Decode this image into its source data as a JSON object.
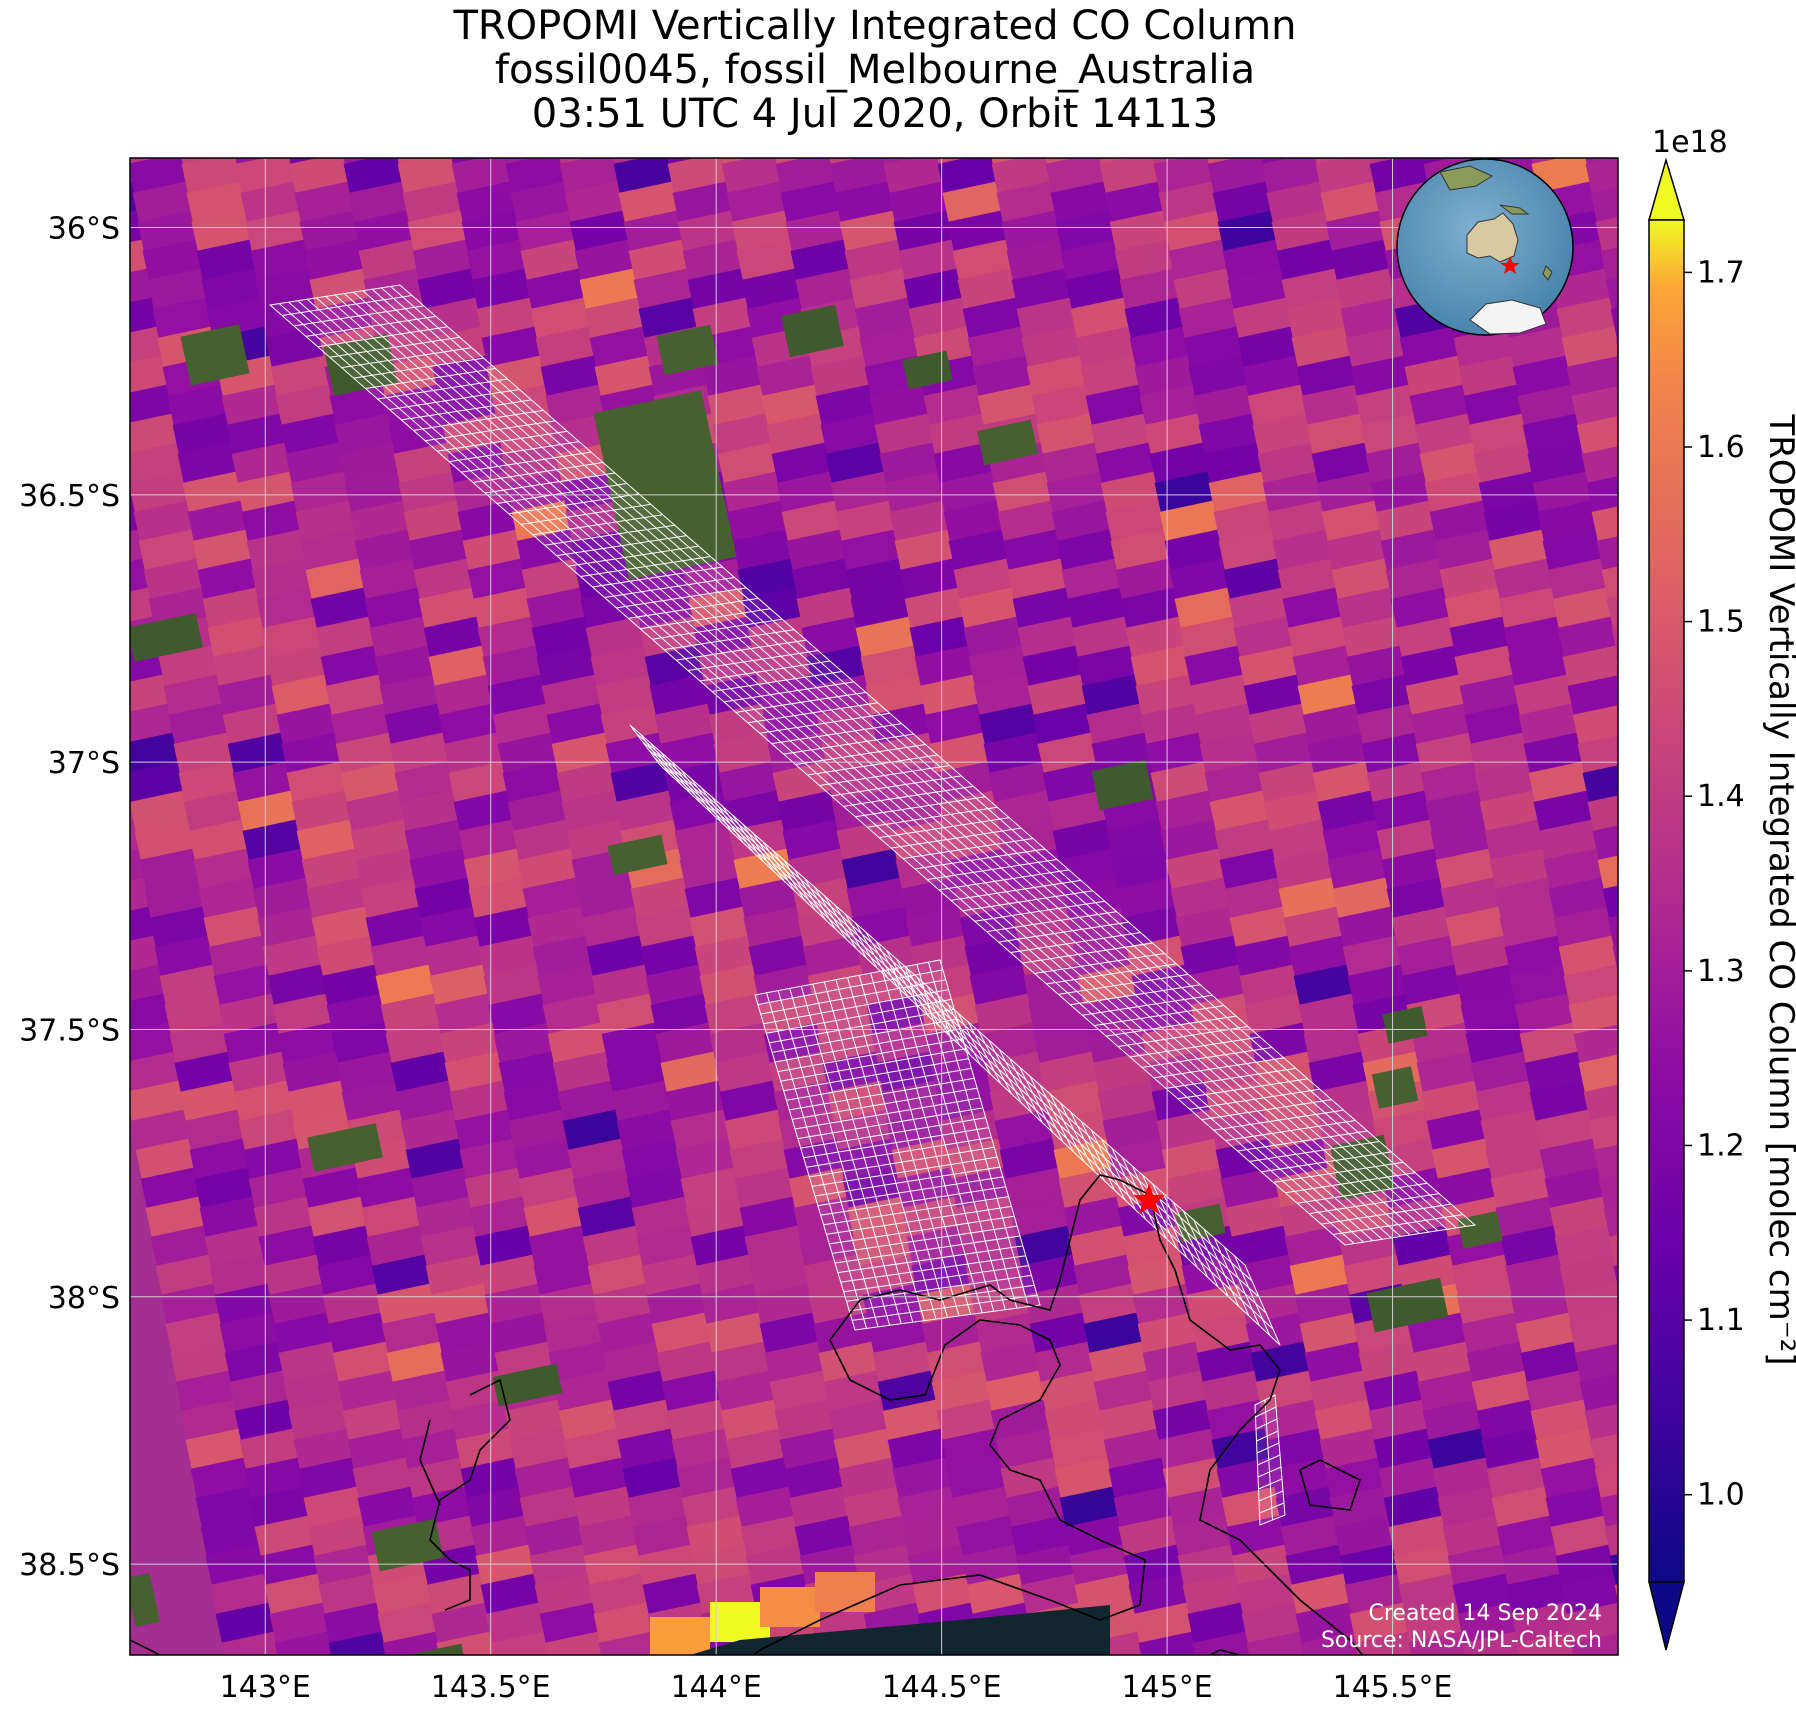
{
  "title": {
    "line1": "TROPOMI Vertically Integrated CO Column",
    "line2": "fossil0045, fossil_Melbourne_Australia",
    "line3": "03:51 UTC 4 Jul 2020, Orbit 14113"
  },
  "map": {
    "lon_range": [
      142.7,
      146.0
    ],
    "lat_range": [
      -38.67,
      -35.87
    ],
    "lon_ticks": [
      {
        "value": 143.0,
        "label": "143°E"
      },
      {
        "value": 143.5,
        "label": "143.5°E"
      },
      {
        "value": 144.0,
        "label": "144°E"
      },
      {
        "value": 144.5,
        "label": "144.5°E"
      },
      {
        "value": 145.0,
        "label": "145°E"
      },
      {
        "value": 145.5,
        "label": "145.5°E"
      }
    ],
    "lat_ticks": [
      {
        "value": -36.0,
        "label": "36°S"
      },
      {
        "value": -36.5,
        "label": "36.5°S"
      },
      {
        "value": -37.0,
        "label": "37°S"
      },
      {
        "value": -37.5,
        "label": "37.5°S"
      },
      {
        "value": -38.0,
        "label": "38°S"
      },
      {
        "value": -38.5,
        "label": "38.5°S"
      }
    ],
    "gridlines": true,
    "target_marker": {
      "lon": 144.96,
      "lat": -37.82,
      "symbol": "red-star"
    },
    "inset": "globe-locator-australia",
    "colors": {
      "grid": "#d0d0d0",
      "target": "#ff0000",
      "coast": "#000000",
      "snapshot": "#ffffff"
    }
  },
  "colorbar": {
    "label": "TROPOMI Vertically Integrated CO Column [molec cm⁻²]",
    "multiplier": "1e18",
    "range": [
      0.95,
      1.73
    ],
    "ticks": [
      {
        "value": 1.0,
        "label": "1.0"
      },
      {
        "value": 1.1,
        "label": "1.1"
      },
      {
        "value": 1.2,
        "label": "1.2"
      },
      {
        "value": 1.3,
        "label": "1.3"
      },
      {
        "value": 1.4,
        "label": "1.4"
      },
      {
        "value": 1.5,
        "label": "1.5"
      },
      {
        "value": 1.6,
        "label": "1.6"
      },
      {
        "value": 1.7,
        "label": "1.7"
      }
    ],
    "extend": "both",
    "colormap": "plasma"
  },
  "credits": {
    "created": "Created 14 Sep 2024",
    "source": "Source: NASA/JPL-Caltech"
  }
}
